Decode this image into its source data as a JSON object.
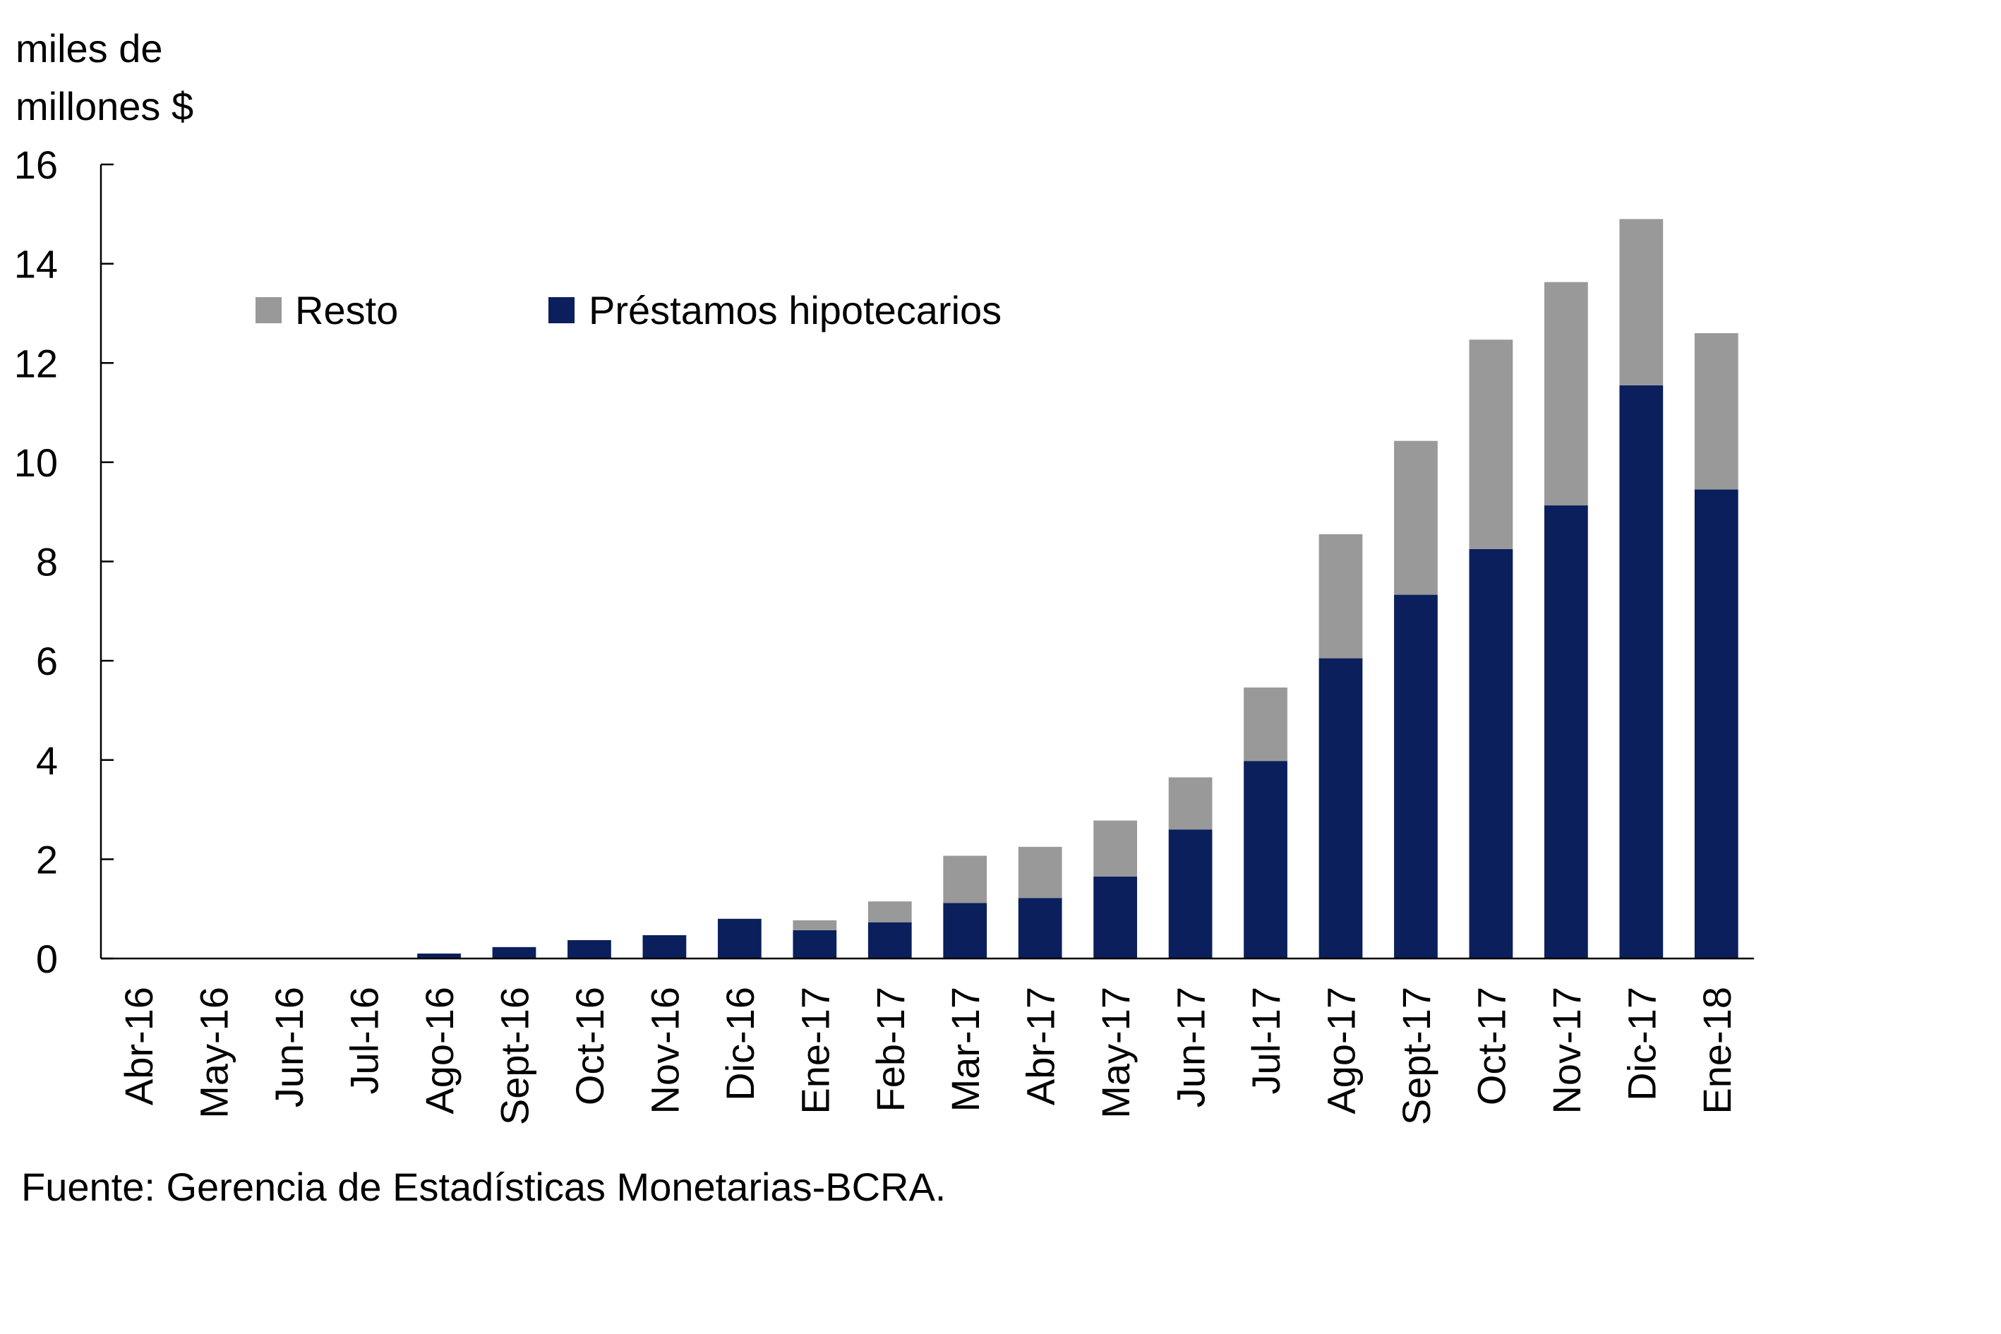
{
  "chart_data": {
    "type": "bar",
    "stacked": true,
    "title": "",
    "ylabel": [
      "miles de",
      "millones $"
    ],
    "xlabel": "",
    "ylim": [
      0,
      16
    ],
    "yticks": [
      0,
      2,
      4,
      6,
      8,
      10,
      12,
      14,
      16
    ],
    "grid": false,
    "legend_position": "top-left",
    "categories": [
      "Abr-16",
      "May-16",
      "Jun-16",
      "Jul-16",
      "Ago-16",
      "Sept-16",
      "Oct-16",
      "Nov-16",
      "Dic-16",
      "Ene-17",
      "Feb-17",
      "Mar-17",
      "Abr-17",
      "May-17",
      "Jun-17",
      "Jul-17",
      "Ago-17",
      "Sept-17",
      "Oct-17",
      "Nov-17",
      "Dic-17",
      "Ene-18"
    ],
    "series": [
      {
        "name": "Préstamos hipotecarios",
        "color": "#0a1f5c",
        "values": [
          0,
          0.01,
          0.01,
          0.01,
          0.1,
          0.23,
          0.37,
          0.47,
          0.8,
          0.57,
          0.73,
          1.12,
          1.22,
          1.65,
          2.6,
          3.98,
          6.05,
          7.33,
          8.25,
          9.13,
          11.55,
          9.45
        ]
      },
      {
        "name": "Resto",
        "color": "#999999",
        "values": [
          0,
          0,
          0,
          0,
          0,
          0,
          0,
          0,
          0,
          0.2,
          0.42,
          0.95,
          1.03,
          1.13,
          1.05,
          1.48,
          2.5,
          3.1,
          4.22,
          4.5,
          3.35,
          3.15
        ]
      }
    ],
    "source": "Fuente: Gerencia de Estadísticas Monetarias-BCRA."
  }
}
